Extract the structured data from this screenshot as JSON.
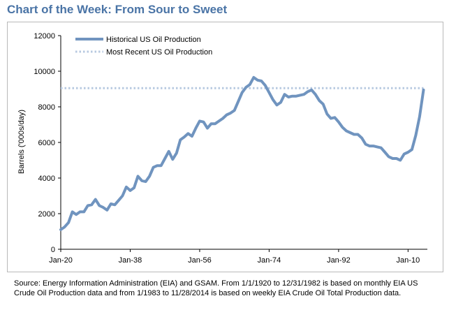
{
  "title": "Chart of the Week: From Sour to Sweet",
  "source_note": "Source: Energy Information Administration (EIA) and GSAM. From 1/1/1920 to 12/31/1982 is based on monthly EIA US Crude Oil Production data and from 1/1983 to 11/28/2014 is based on weekly EIA Crude Oil Total Production data.",
  "colors": {
    "title": "#4a74a6",
    "series": "#7094bf",
    "reference": "#b7c9e0"
  },
  "chart_data": {
    "type": "line",
    "title": "",
    "xlabel": "",
    "ylabel": "Barrels ('000s/day)",
    "xlim": [
      1920,
      2015
    ],
    "ylim": [
      0,
      12000
    ],
    "x_ticks": [
      1920,
      1938,
      1956,
      1974,
      1992,
      2010
    ],
    "x_tick_labels": [
      "Jan-20",
      "Jan-38",
      "Jan-56",
      "Jan-74",
      "Jan-92",
      "Jan-10"
    ],
    "y_ticks": [
      0,
      2000,
      4000,
      6000,
      8000,
      10000,
      12000
    ],
    "y_tick_labels": [
      "0",
      "2000",
      "4000",
      "6000",
      "8000",
      "10000",
      "12000"
    ],
    "grid": false,
    "legend_position": "top-left",
    "series": [
      {
        "name": "Historical US Oil Production",
        "style": "solid",
        "x": [
          1920,
          1921,
          1922,
          1923,
          1924,
          1925,
          1926,
          1927,
          1928,
          1929,
          1930,
          1931,
          1932,
          1933,
          1934,
          1935,
          1936,
          1937,
          1938,
          1939,
          1940,
          1941,
          1942,
          1943,
          1944,
          1945,
          1946,
          1947,
          1948,
          1949,
          1950,
          1951,
          1952,
          1953,
          1954,
          1955,
          1956,
          1957,
          1958,
          1959,
          1960,
          1961,
          1962,
          1963,
          1964,
          1965,
          1966,
          1967,
          1968,
          1969,
          1970,
          1971,
          1972,
          1973,
          1974,
          1975,
          1976,
          1977,
          1978,
          1979,
          1980,
          1981,
          1982,
          1983,
          1984,
          1985,
          1986,
          1987,
          1988,
          1989,
          1990,
          1991,
          1992,
          1993,
          1994,
          1995,
          1996,
          1997,
          1998,
          1999,
          2000,
          2001,
          2002,
          2003,
          2004,
          2005,
          2006,
          2007,
          2008,
          2009,
          2010,
          2011,
          2012,
          2013,
          2014
        ],
        "values": [
          1100,
          1250,
          1500,
          2100,
          1950,
          2100,
          2100,
          2450,
          2500,
          2800,
          2450,
          2350,
          2200,
          2550,
          2500,
          2750,
          3000,
          3500,
          3300,
          3450,
          4100,
          3850,
          3800,
          4100,
          4600,
          4700,
          4700,
          5100,
          5500,
          5050,
          5400,
          6150,
          6300,
          6500,
          6350,
          6800,
          7200,
          7150,
          6800,
          7050,
          7050,
          7200,
          7350,
          7550,
          7650,
          7800,
          8300,
          8800,
          9100,
          9250,
          9650,
          9500,
          9450,
          9200,
          8800,
          8400,
          8100,
          8250,
          8700,
          8550,
          8600,
          8600,
          8650,
          8700,
          8850,
          8950,
          8700,
          8350,
          8150,
          7600,
          7350,
          7400,
          7150,
          6850,
          6650,
          6550,
          6450,
          6450,
          6250,
          5900,
          5800,
          5800,
          5750,
          5700,
          5450,
          5200,
          5100,
          5100,
          5000,
          5350,
          5450,
          5600,
          6400,
          7450,
          8950
        ]
      },
      {
        "name": "Most Recent US Oil Production",
        "style": "dotted",
        "x": [
          1920,
          2014
        ],
        "values": [
          9050,
          9050
        ]
      }
    ]
  }
}
